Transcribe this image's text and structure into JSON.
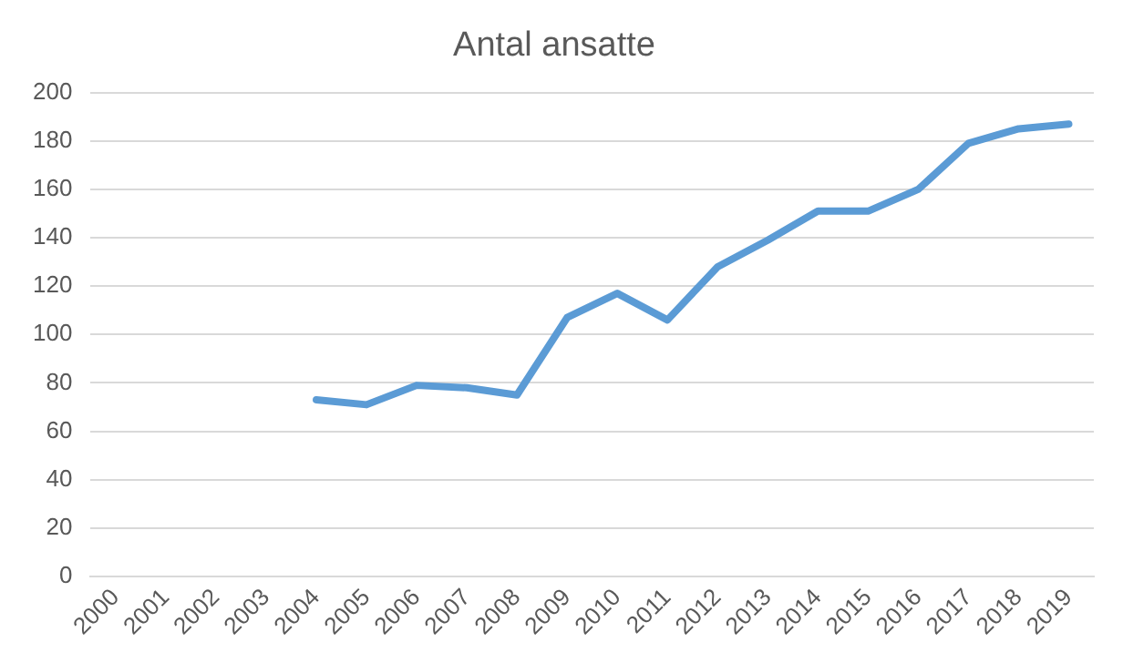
{
  "chart_data": {
    "type": "line",
    "title": "Antal ansatte",
    "categories": [
      "2000",
      "2001",
      "2002",
      "2003",
      "2004",
      "2005",
      "2006",
      "2007",
      "2008",
      "2009",
      "2010",
      "2011",
      "2012",
      "2013",
      "2014",
      "2015",
      "2016",
      "2017",
      "2018",
      "2019"
    ],
    "series": [
      {
        "color": "#5b9bd5",
        "values": [
          null,
          null,
          null,
          null,
          73,
          71,
          79,
          78,
          75,
          107,
          117,
          106,
          128,
          139,
          151,
          151,
          160,
          179,
          185,
          187
        ]
      }
    ],
    "ylim": [
      0,
      200
    ],
    "yticks": [
      0,
      20,
      40,
      60,
      80,
      100,
      120,
      140,
      160,
      180,
      200
    ],
    "grid": "y",
    "legend": false,
    "marker": "none",
    "line_style": "solid"
  }
}
